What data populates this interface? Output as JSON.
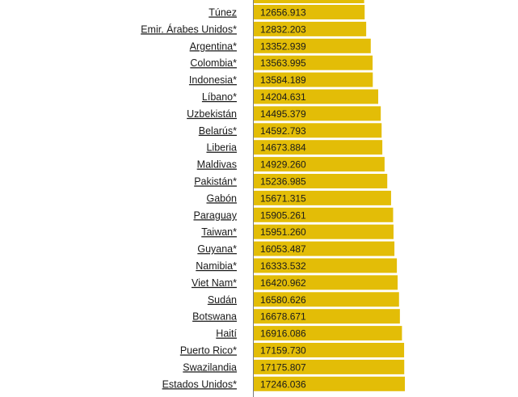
{
  "chart_data": {
    "type": "bar",
    "orientation": "horizontal",
    "bar_color": "#e3bd07",
    "xlim": [
      0,
      17246.036
    ],
    "categories": [
      "Túnez",
      "Emir. Árabes Unidos*",
      "Argentina*",
      "Colombia*",
      "Indonesia*",
      "Líbano*",
      "Uzbekistán",
      "Belarús*",
      "Liberia",
      "Maldivas",
      "Pakistán*",
      "Gabón",
      "Paraguay",
      "Taiwan*",
      "Guyana*",
      "Namibia*",
      "Viet Nam*",
      "Sudán",
      "Botswana",
      "Haití",
      "Puerto Rico*",
      "Swazilandia",
      "Estados Unidos*"
    ],
    "values": [
      "12656.913",
      "12832.203",
      "13352.939",
      "13563.995",
      "13584.189",
      "14204.631",
      "14495.379",
      "14592.793",
      "14673.884",
      "14929.260",
      "15236.985",
      "15671.315",
      "15905.261",
      "15951.260",
      "16053.487",
      "16333.532",
      "16420.962",
      "16580.626",
      "16678.671",
      "16916.086",
      "17159.730",
      "17175.807",
      "17246.036"
    ],
    "partial_top_bar_value": 12600
  }
}
